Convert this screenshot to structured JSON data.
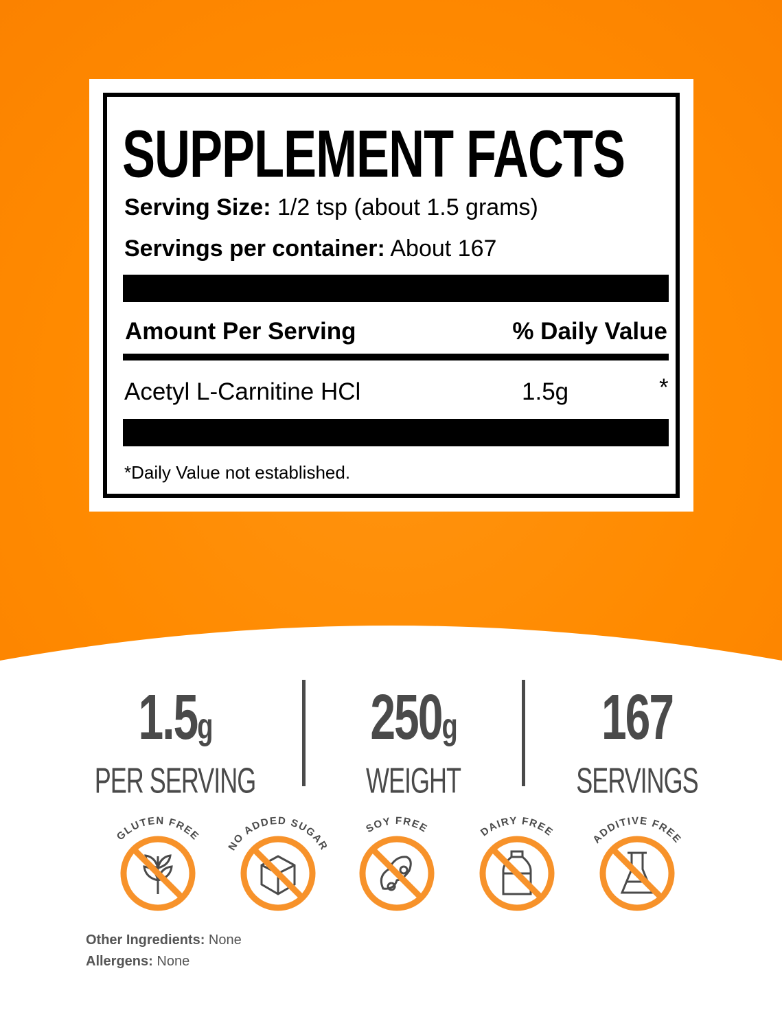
{
  "colors": {
    "background": "#FF8A00",
    "accent": "#F7922A",
    "text_dark": "#4A4A4A"
  },
  "label": {
    "title": "SUPPLEMENT FACTS",
    "serving_size_label": "Serving Size:",
    "serving_size_value": "1/2 tsp (about 1.5 grams)",
    "servings_label": "Servings per container:",
    "servings_value": "About 167",
    "amount_header": "Amount Per Serving",
    "dv_header": "% Daily Value",
    "ingredients": [
      {
        "name": "Acetyl L-Carnitine HCl",
        "amount": "1.5g",
        "dv": "*"
      }
    ],
    "footnote": "*Daily Value not established."
  },
  "stats": [
    {
      "value": "1.5",
      "unit": "g",
      "caption": "PER SERVING"
    },
    {
      "value": "250",
      "unit": "g",
      "caption": "WEIGHT"
    },
    {
      "value": "167",
      "unit": "",
      "caption": "SERVINGS"
    }
  ],
  "badges": [
    {
      "label": "GLUTEN FREE",
      "icon": "wheat-icon"
    },
    {
      "label": "NO ADDED SUGAR",
      "icon": "sugar-cube-icon"
    },
    {
      "label": "SOY FREE",
      "icon": "soybean-icon"
    },
    {
      "label": "DAIRY FREE",
      "icon": "milk-bottle-icon"
    },
    {
      "label": "ADDITIVE FREE",
      "icon": "flask-icon"
    }
  ],
  "other_ingredients": {
    "label": "Other Ingredients:",
    "value": "None"
  },
  "allergens": {
    "label": "Allergens:",
    "value": "None"
  }
}
